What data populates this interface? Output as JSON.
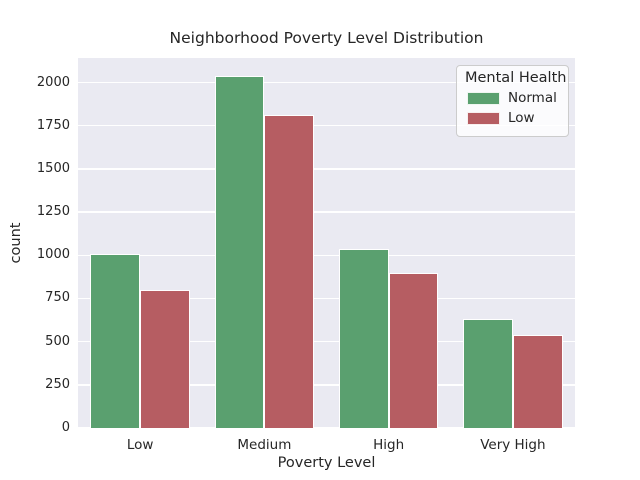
{
  "figure": {
    "background": "#ffffff",
    "plot_background": "#eaeaf2",
    "grid_color": "#ffffff",
    "text_color": "#262626"
  },
  "chart_data": {
    "type": "bar",
    "title": "Neighborhood Poverty Level Distribution",
    "xlabel": "Poverty Level",
    "ylabel": "count",
    "categories": [
      "Low",
      "Medium",
      "High",
      "Very High"
    ],
    "series": [
      {
        "name": "Normal",
        "color": "#5aa06f",
        "values": [
          1010,
          2040,
          1035,
          630
        ]
      },
      {
        "name": "Low",
        "color": "#b65d62",
        "values": [
          800,
          1810,
          900,
          540
        ]
      }
    ],
    "ylim": [
      0,
      2142
    ],
    "yticks": [
      0,
      250,
      500,
      750,
      1000,
      1250,
      1500,
      1750,
      2000
    ],
    "grid": true,
    "grid_axis": "y",
    "legend": {
      "title": "Mental Health",
      "position": "upper right"
    }
  }
}
